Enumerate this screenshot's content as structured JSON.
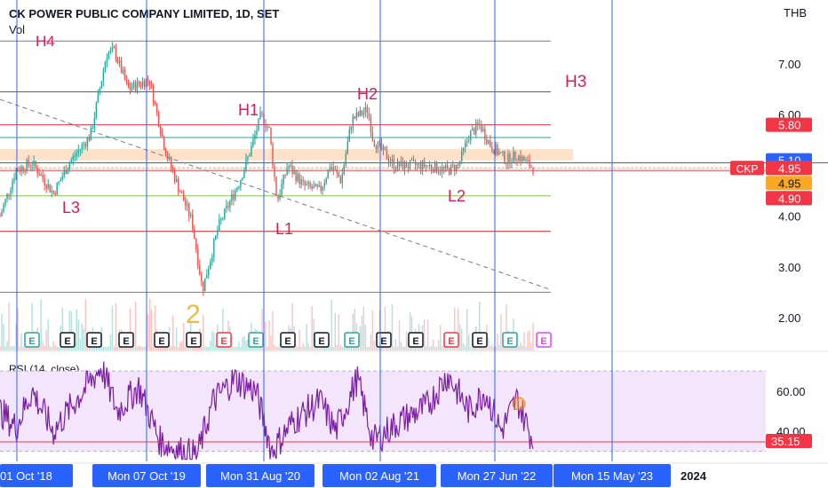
{
  "header": {
    "title": "CK POWER PUBLIC COMPANY LIMITED, 1D, SET",
    "volume_label": "Vol",
    "currency": "THB"
  },
  "colors": {
    "price_up": "#26a69a",
    "price_down": "#ef5350",
    "vertical_line": "#2962ff",
    "annotation": "#d81b60",
    "rsi_line": "#7b1fa2",
    "rsi_band": "#f3e5fc",
    "zone": "#fcd7b5",
    "label_red": "#f23645",
    "label_blue": "#2962ff",
    "label_orange": "#f9a825",
    "number_two": "#f5b63a"
  },
  "price_axis": {
    "ticks": [
      "7.00",
      "6.00",
      "5.00",
      "4.00",
      "3.00",
      "2.00"
    ]
  },
  "price_labels": [
    {
      "value": 5.8,
      "text": "5.80",
      "kind": "red"
    },
    {
      "value": 5.1,
      "text": "5.10",
      "kind": "blue"
    },
    {
      "value": 4.95,
      "text": "4.95",
      "kind": "red"
    },
    {
      "value": 4.95,
      "text": "4.95",
      "kind": "orange",
      "offset": 1
    },
    {
      "value": 4.9,
      "text": "4.90",
      "kind": "red",
      "offset": 2
    }
  ],
  "symbol_badge": "CKP",
  "rsi": {
    "label": "RSI (14, close)",
    "ticks": [
      "60.00",
      "40.00"
    ],
    "value_label": "35.15",
    "band_upper": 70,
    "band_lower": 30
  },
  "time_axis": {
    "labels": [
      "01 Oct '18",
      "Mon 07 Oct '19",
      "Mon 31 Aug '20",
      "Mon 02 Aug '21",
      "Mon 27 Jun '22",
      "Mon 15 May '23",
      "2024"
    ]
  },
  "annotations": [
    "H4",
    "H1",
    "H2",
    "H3",
    "L3",
    "L1",
    "L2",
    "2"
  ],
  "earnings_marker": "E",
  "chart_data": {
    "type": "candlestick",
    "title": "CK POWER PUBLIC COMPANY LIMITED, 1D, SET",
    "currency": "THB",
    "ylim": [
      1.5,
      7.6
    ],
    "horizontal_levels": [
      {
        "value": 7.45,
        "color": "#787b86"
      },
      {
        "value": 6.45,
        "color": "#2962ff"
      },
      {
        "value": 5.8,
        "color": "#f23645"
      },
      {
        "value": 5.55,
        "color": "#26a69a"
      },
      {
        "value": 4.95,
        "color": "#f9a825"
      },
      {
        "value": 4.9,
        "color": "#f23645"
      },
      {
        "value": 4.4,
        "color": "#8bc34a"
      },
      {
        "value": 3.7,
        "color": "#c62828"
      },
      {
        "value": 2.5,
        "color": "#787b86"
      }
    ],
    "zone": [
      5.1,
      5.32
    ],
    "trendline": {
      "from": [
        0.0,
        6.3
      ],
      "to": [
        1.0,
        2.55
      ]
    },
    "price_waypoints": [
      {
        "t": 0.0,
        "v": 4.0
      },
      {
        "t": 0.03,
        "v": 4.9
      },
      {
        "t": 0.06,
        "v": 5.05
      },
      {
        "t": 0.1,
        "v": 4.45
      },
      {
        "t": 0.13,
        "v": 5.05
      },
      {
        "t": 0.17,
        "v": 5.6
      },
      {
        "t": 0.2,
        "v": 7.2
      },
      {
        "t": 0.215,
        "v": 7.25
      },
      {
        "t": 0.24,
        "v": 6.5
      },
      {
        "t": 0.28,
        "v": 6.7
      },
      {
        "t": 0.31,
        "v": 5.3
      },
      {
        "t": 0.33,
        "v": 4.7
      },
      {
        "t": 0.36,
        "v": 3.9
      },
      {
        "t": 0.38,
        "v": 2.55
      },
      {
        "t": 0.41,
        "v": 3.8
      },
      {
        "t": 0.45,
        "v": 4.7
      },
      {
        "t": 0.47,
        "v": 5.3
      },
      {
        "t": 0.49,
        "v": 6.0
      },
      {
        "t": 0.505,
        "v": 5.7
      },
      {
        "t": 0.52,
        "v": 4.3
      },
      {
        "t": 0.54,
        "v": 5.0
      },
      {
        "t": 0.57,
        "v": 4.6
      },
      {
        "t": 0.6,
        "v": 4.5
      },
      {
        "t": 0.62,
        "v": 5.0
      },
      {
        "t": 0.64,
        "v": 4.7
      },
      {
        "t": 0.66,
        "v": 5.9
      },
      {
        "t": 0.69,
        "v": 6.1
      },
      {
        "t": 0.7,
        "v": 5.5
      },
      {
        "t": 0.74,
        "v": 5.0
      },
      {
        "t": 0.8,
        "v": 5.0
      },
      {
        "t": 0.84,
        "v": 4.9
      },
      {
        "t": 0.86,
        "v": 5.0
      },
      {
        "t": 0.88,
        "v": 5.6
      },
      {
        "t": 0.9,
        "v": 5.8
      },
      {
        "t": 0.92,
        "v": 5.4
      },
      {
        "t": 0.95,
        "v": 5.1
      },
      {
        "t": 0.97,
        "v": 5.2
      },
      {
        "t": 1.0,
        "v": 4.95
      }
    ],
    "rsi_waypoints": [
      {
        "t": 0.0,
        "v": 50
      },
      {
        "t": 0.03,
        "v": 42
      },
      {
        "t": 0.06,
        "v": 60
      },
      {
        "t": 0.1,
        "v": 40
      },
      {
        "t": 0.15,
        "v": 58
      },
      {
        "t": 0.19,
        "v": 72
      },
      {
        "t": 0.22,
        "v": 50
      },
      {
        "t": 0.26,
        "v": 62
      },
      {
        "t": 0.3,
        "v": 35
      },
      {
        "t": 0.34,
        "v": 30
      },
      {
        "t": 0.37,
        "v": 28
      },
      {
        "t": 0.4,
        "v": 55
      },
      {
        "t": 0.44,
        "v": 66
      },
      {
        "t": 0.48,
        "v": 60
      },
      {
        "t": 0.51,
        "v": 30
      },
      {
        "t": 0.55,
        "v": 45
      },
      {
        "t": 0.6,
        "v": 55
      },
      {
        "t": 0.63,
        "v": 40
      },
      {
        "t": 0.67,
        "v": 66
      },
      {
        "t": 0.7,
        "v": 35
      },
      {
        "t": 0.75,
        "v": 45
      },
      {
        "t": 0.8,
        "v": 52
      },
      {
        "t": 0.84,
        "v": 68
      },
      {
        "t": 0.88,
        "v": 50
      },
      {
        "t": 0.91,
        "v": 60
      },
      {
        "t": 0.94,
        "v": 40
      },
      {
        "t": 0.97,
        "v": 56
      },
      {
        "t": 1.0,
        "v": 35
      }
    ],
    "rsi_ylim": [
      25,
      78
    ]
  }
}
